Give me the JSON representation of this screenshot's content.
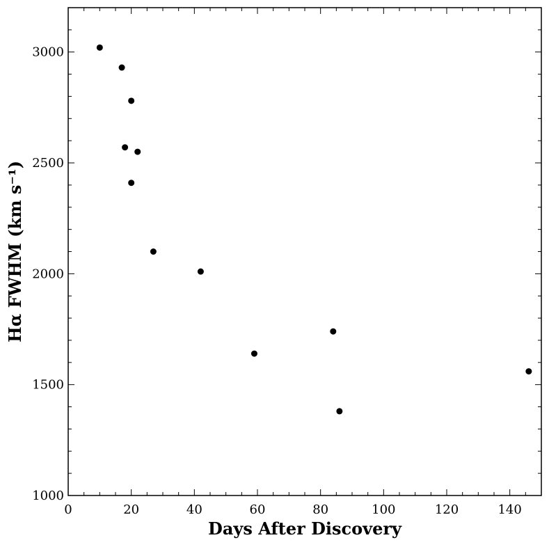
{
  "chart_data": {
    "type": "scatter",
    "title": "",
    "xlabel": "Days After Discovery",
    "ylabel": "Hα FWHM (km s⁻¹)",
    "xlim": [
      0,
      150
    ],
    "ylim": [
      1000,
      3200
    ],
    "xticks": [
      0,
      20,
      40,
      60,
      80,
      100,
      120,
      140
    ],
    "yticks": [
      1000,
      1500,
      2000,
      2500,
      3000
    ],
    "x_tick_labels": [
      "0",
      "20",
      "40",
      "60",
      "80",
      "100",
      "120",
      "140"
    ],
    "y_tick_labels": [
      "1000",
      "1500",
      "2000",
      "2500",
      "3000"
    ],
    "grid": false,
    "marker_color": "#000000",
    "points": [
      {
        "x": 10,
        "y": 3020
      },
      {
        "x": 17,
        "y": 2930
      },
      {
        "x": 20,
        "y": 2780
      },
      {
        "x": 18,
        "y": 2570
      },
      {
        "x": 22,
        "y": 2550
      },
      {
        "x": 20,
        "y": 2410
      },
      {
        "x": 27,
        "y": 2100
      },
      {
        "x": 42,
        "y": 2010
      },
      {
        "x": 59,
        "y": 1640
      },
      {
        "x": 84,
        "y": 1740
      },
      {
        "x": 86,
        "y": 1380
      },
      {
        "x": 146,
        "y": 1560
      }
    ]
  }
}
